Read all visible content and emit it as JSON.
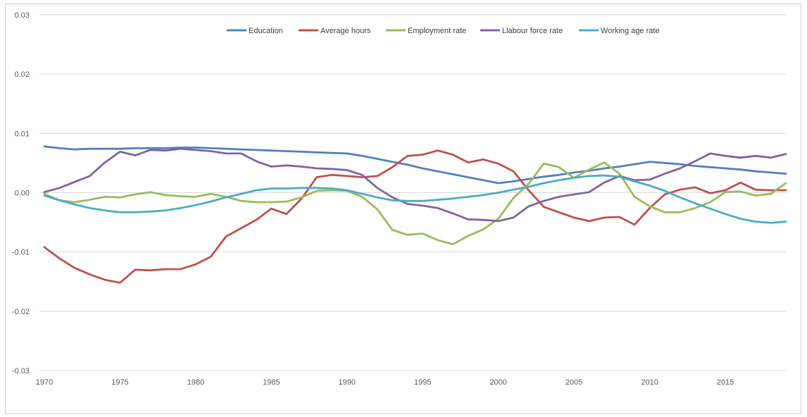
{
  "chart_data": {
    "type": "line",
    "title": "",
    "xlabel": "",
    "ylabel": "",
    "xlim": [
      1970,
      2019
    ],
    "ylim": [
      -0.03,
      0.03
    ],
    "grid": true,
    "legend_position": "top-center",
    "y_ticks": [
      "0.03",
      "0.02",
      "0.01",
      "0.00",
      "-0.01",
      "-0.02",
      "-0.03"
    ],
    "y_tick_values": [
      0.03,
      0.02,
      0.01,
      0.0,
      -0.01,
      -0.02,
      -0.03
    ],
    "x_ticks": [
      "1970",
      "1975",
      "1980",
      "1985",
      "1990",
      "1995",
      "2000",
      "2005",
      "2010",
      "2015"
    ],
    "x_tick_values": [
      1970,
      1975,
      1980,
      1985,
      1990,
      1995,
      2000,
      2005,
      2010,
      2015
    ],
    "x": [
      1970,
      1971,
      1972,
      1973,
      1974,
      1975,
      1976,
      1977,
      1978,
      1979,
      1980,
      1981,
      1982,
      1983,
      1984,
      1985,
      1986,
      1987,
      1988,
      1989,
      1990,
      1991,
      1992,
      1993,
      1994,
      1995,
      1996,
      1997,
      1998,
      1999,
      2000,
      2001,
      2002,
      2003,
      2004,
      2005,
      2006,
      2007,
      2008,
      2009,
      2010,
      2011,
      2012,
      2013,
      2014,
      2015,
      2016,
      2017,
      2018,
      2019
    ],
    "series": [
      {
        "name": "Education",
        "color": "#4f81bd",
        "values": [
          0.0078,
          0.0075,
          0.0073,
          0.0074,
          0.0074,
          0.0074,
          0.0075,
          0.0075,
          0.0075,
          0.0076,
          0.0076,
          0.0075,
          0.0074,
          0.0073,
          0.0072,
          0.0071,
          0.007,
          0.0069,
          0.0068,
          0.0067,
          0.0066,
          0.0062,
          0.0057,
          0.0052,
          0.0047,
          0.0041,
          0.0036,
          0.0031,
          0.0026,
          0.0021,
          0.0016,
          0.0019,
          0.0023,
          0.0027,
          0.003,
          0.0034,
          0.0037,
          0.0041,
          0.0044,
          0.0048,
          0.0052,
          0.005,
          0.0048,
          0.0045,
          0.0043,
          0.0041,
          0.0039,
          0.0036,
          0.0034,
          0.0032
        ]
      },
      {
        "name": "Average hours",
        "color": "#c0504d",
        "values": [
          -0.0092,
          -0.0111,
          -0.0127,
          -0.0138,
          -0.0147,
          -0.0152,
          -0.013,
          -0.0131,
          -0.0129,
          -0.0129,
          -0.0121,
          -0.0108,
          -0.0074,
          -0.006,
          -0.0046,
          -0.0027,
          -0.0036,
          -0.001,
          0.0026,
          0.003,
          0.0028,
          0.0026,
          0.0028,
          0.0043,
          0.0062,
          0.0064,
          0.0071,
          0.0064,
          0.0051,
          0.0056,
          0.0049,
          0.0036,
          0.0004,
          -0.0024,
          -0.0033,
          -0.0042,
          -0.0048,
          -0.0042,
          -0.0041,
          -0.0054,
          -0.0026,
          -0.0003,
          0.0005,
          0.0009,
          -0.0001,
          0.0004,
          0.0017,
          0.0005,
          0.0004,
          0.0004
        ]
      },
      {
        "name": "Employment rate",
        "color": "#9bbb59",
        "values": [
          -0.0002,
          -0.0013,
          -0.0016,
          -0.0012,
          -0.0007,
          -0.0008,
          -0.0003,
          0.0001,
          -0.0004,
          -0.0006,
          -0.0007,
          -0.0002,
          -0.0007,
          -0.0014,
          -0.0016,
          -0.0016,
          -0.0015,
          -0.0008,
          0.0003,
          0.0004,
          0.0003,
          -0.0007,
          -0.0028,
          -0.0063,
          -0.0071,
          -0.0069,
          -0.008,
          -0.0087,
          -0.0073,
          -0.0062,
          -0.0044,
          -0.0009,
          0.0015,
          0.0049,
          0.0043,
          0.0025,
          0.0039,
          0.0051,
          0.0032,
          -0.0007,
          -0.0023,
          -0.0033,
          -0.0033,
          -0.0026,
          -0.0016,
          0.0001,
          0.0002,
          -0.0005,
          -0.0002,
          0.0016
        ]
      },
      {
        "name": "Llabour force rate",
        "color": "#8064a2",
        "values": [
          0.0001,
          0.0008,
          0.0018,
          0.0028,
          0.0051,
          0.0069,
          0.0063,
          0.0072,
          0.0071,
          0.0074,
          0.0072,
          0.007,
          0.0066,
          0.0066,
          0.0053,
          0.0044,
          0.0046,
          0.0044,
          0.0041,
          0.004,
          0.0038,
          0.003,
          0.0008,
          -0.0008,
          -0.0019,
          -0.0022,
          -0.0026,
          -0.0035,
          -0.0045,
          -0.0046,
          -0.0048,
          -0.0042,
          -0.0023,
          -0.0014,
          -0.0007,
          -0.0003,
          0.0001,
          0.0017,
          0.0028,
          0.0021,
          0.0022,
          0.0032,
          0.0041,
          0.0053,
          0.0066,
          0.0062,
          0.0059,
          0.0062,
          0.0059,
          0.0065
        ]
      },
      {
        "name": "Working age rate",
        "color": "#4bacc6",
        "values": [
          -0.0005,
          -0.0013,
          -0.002,
          -0.0026,
          -0.003,
          -0.0033,
          -0.0033,
          -0.0032,
          -0.003,
          -0.0026,
          -0.0021,
          -0.0015,
          -0.0008,
          -0.0002,
          0.0004,
          0.0007,
          0.0007,
          0.0008,
          0.0008,
          0.0007,
          0.0004,
          -0.0002,
          -0.0008,
          -0.0013,
          -0.0014,
          -0.0014,
          -0.0012,
          -0.001,
          -0.0007,
          -0.0004,
          0.0,
          0.0005,
          0.001,
          0.0016,
          0.0021,
          0.0025,
          0.0028,
          0.0029,
          0.0027,
          0.0019,
          0.0012,
          0.0003,
          -0.0008,
          -0.0018,
          -0.0027,
          -0.0036,
          -0.0044,
          -0.0049,
          -0.0051,
          -0.0049
        ]
      }
    ]
  }
}
